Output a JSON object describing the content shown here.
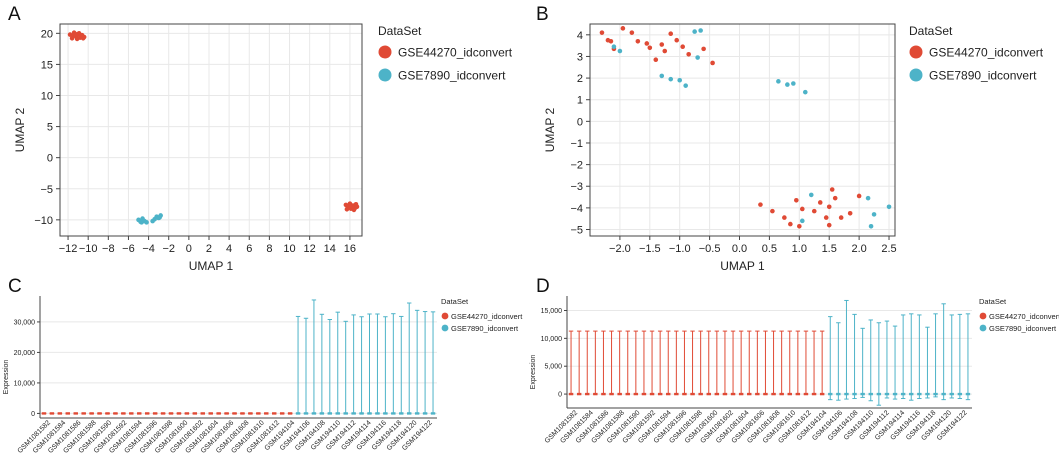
{
  "colors": {
    "gse44270": "#e04a35",
    "gse7890": "#4db3c8"
  },
  "panel_labels": [
    "A",
    "B",
    "C",
    "D"
  ],
  "chart_data": [
    {
      "id": "A",
      "type": "scatter",
      "xlabel": "UMAP 1",
      "ylabel": "UMAP 2",
      "xlim": [
        -12.8,
        17.2
      ],
      "ylim": [
        -12.6,
        21.5
      ],
      "xticks": [
        -12,
        -10,
        -8,
        -6,
        -4,
        -2,
        0,
        2,
        4,
        6,
        8,
        10,
        12,
        14,
        16
      ],
      "xtick_labels": [
        "−12",
        "−10",
        "−8",
        "−6",
        "−4",
        "−2",
        "0",
        "2",
        "4",
        "6",
        "8",
        "10",
        "12",
        "14",
        "16"
      ],
      "yticks": [
        -10,
        -5,
        0,
        5,
        10,
        15,
        20
      ],
      "ytick_labels": [
        "−10",
        "−5",
        "0",
        "5",
        "10",
        "15",
        "20"
      ],
      "legend_title": "DataSet",
      "series": [
        {
          "name": "GSE44270_idconvert",
          "color": "#e04a35",
          "points": [
            [
              -11.8,
              19.8
            ],
            [
              -11.6,
              19.2
            ],
            [
              -11.4,
              20.1
            ],
            [
              -11.2,
              19.5
            ],
            [
              -11.0,
              19.9
            ],
            [
              -10.8,
              19.3
            ],
            [
              -10.6,
              19.7
            ],
            [
              -10.4,
              19.4
            ],
            [
              -11.5,
              19.6
            ],
            [
              -11.1,
              19.1
            ],
            [
              -10.9,
              20.0
            ],
            [
              -10.7,
              19.6
            ],
            [
              -11.3,
              19.9
            ],
            [
              -10.5,
              19.2
            ],
            [
              15.6,
              -7.6
            ],
            [
              15.8,
              -8.0
            ],
            [
              16.0,
              -7.4
            ],
            [
              16.1,
              -8.2
            ],
            [
              16.3,
              -7.7
            ],
            [
              16.5,
              -8.1
            ],
            [
              16.6,
              -7.5
            ],
            [
              15.7,
              -8.3
            ],
            [
              16.2,
              -7.9
            ],
            [
              16.4,
              -8.4
            ],
            [
              15.9,
              -7.8
            ],
            [
              16.7,
              -7.9
            ]
          ]
        },
        {
          "name": "GSE7890_idconvert",
          "color": "#4db3c8",
          "points": [
            [
              -5.0,
              -10.0
            ],
            [
              -4.8,
              -10.3
            ],
            [
              -4.6,
              -9.8
            ],
            [
              -4.4,
              -10.2
            ],
            [
              -4.2,
              -10.4
            ],
            [
              -3.4,
              -9.9
            ],
            [
              -3.2,
              -9.5
            ],
            [
              -3.0,
              -9.7
            ],
            [
              -2.8,
              -9.3
            ],
            [
              -3.6,
              -10.2
            ],
            [
              -4.7,
              -10.4
            ],
            [
              -2.9,
              -9.6
            ]
          ]
        }
      ]
    },
    {
      "id": "B",
      "type": "scatter",
      "xlabel": "UMAP 1",
      "ylabel": "UMAP 2",
      "xlim": [
        -2.5,
        2.6
      ],
      "ylim": [
        -5.3,
        4.5
      ],
      "xticks": [
        -2.0,
        -1.5,
        -1.0,
        -0.5,
        0.0,
        0.5,
        1.0,
        1.5,
        2.0,
        2.5
      ],
      "xtick_labels": [
        "−2.0",
        "−1.5",
        "−1.0",
        "−0.5",
        "0.0",
        "0.5",
        "1.0",
        "1.5",
        "2.0",
        "2.5"
      ],
      "yticks": [
        -5,
        -4,
        -3,
        -2,
        -1,
        0,
        1,
        2,
        3,
        4
      ],
      "ytick_labels": [
        "−5",
        "−4",
        "−3",
        "−2",
        "−1",
        "0",
        "1",
        "2",
        "3",
        "4"
      ],
      "legend_title": "DataSet",
      "series": [
        {
          "name": "GSE44270_idconvert",
          "color": "#e04a35",
          "points": [
            [
              -2.3,
              4.1
            ],
            [
              -2.15,
              3.7
            ],
            [
              -2.1,
              3.35
            ],
            [
              -1.95,
              4.3
            ],
            [
              -1.8,
              4.1
            ],
            [
              -1.7,
              3.7
            ],
            [
              -1.55,
              3.6
            ],
            [
              -1.5,
              3.4
            ],
            [
              -1.4,
              2.85
            ],
            [
              -1.3,
              3.55
            ],
            [
              -1.25,
              3.25
            ],
            [
              -1.15,
              4.05
            ],
            [
              -1.05,
              3.75
            ],
            [
              -0.95,
              3.45
            ],
            [
              -0.85,
              3.1
            ],
            [
              -0.6,
              3.35
            ],
            [
              -0.45,
              2.7
            ],
            [
              -2.2,
              3.75
            ],
            [
              0.35,
              -3.85
            ],
            [
              0.55,
              -4.15
            ],
            [
              0.75,
              -4.45
            ],
            [
              0.85,
              -4.75
            ],
            [
              0.95,
              -3.65
            ],
            [
              1.0,
              -4.85
            ],
            [
              1.05,
              -4.05
            ],
            [
              1.25,
              -4.15
            ],
            [
              1.35,
              -3.75
            ],
            [
              1.45,
              -4.45
            ],
            [
              1.5,
              -3.95
            ],
            [
              1.55,
              -3.15
            ],
            [
              1.6,
              -3.55
            ],
            [
              1.7,
              -4.45
            ],
            [
              1.85,
              -4.25
            ],
            [
              2.0,
              -3.45
            ],
            [
              1.5,
              -4.8
            ]
          ]
        },
        {
          "name": "GSE7890_idconvert",
          "color": "#4db3c8",
          "points": [
            [
              -2.1,
              3.45
            ],
            [
              -2.0,
              3.25
            ],
            [
              -1.3,
              2.1
            ],
            [
              -1.15,
              1.95
            ],
            [
              -1.0,
              1.9
            ],
            [
              -0.9,
              1.65
            ],
            [
              -0.75,
              4.15
            ],
            [
              -0.65,
              4.2
            ],
            [
              -0.7,
              2.95
            ],
            [
              0.65,
              1.85
            ],
            [
              0.8,
              1.7
            ],
            [
              0.9,
              1.75
            ],
            [
              1.1,
              1.35
            ],
            [
              1.2,
              -3.4
            ],
            [
              1.05,
              -4.6
            ],
            [
              2.15,
              -3.55
            ],
            [
              2.25,
              -4.3
            ],
            [
              2.2,
              -4.85
            ],
            [
              2.5,
              -3.95
            ]
          ]
        }
      ]
    },
    {
      "id": "C",
      "type": "box",
      "ylabel": "Expression",
      "ylim": [
        -1500,
        38500
      ],
      "yticks": [
        0,
        10000,
        20000,
        30000
      ],
      "ytick_labels": [
        "0",
        "10,000",
        "20,000",
        "30,000"
      ],
      "legend_title": "DataSet",
      "categories": [
        "GSM1081582",
        "GSM1081584",
        "GSM1081586",
        "GSM1081588",
        "GSM1081590",
        "GSM1081592",
        "GSM1081594",
        "GSM1081596",
        "GSM1081598",
        "GSM1081600",
        "GSM1081602",
        "GSM1081604",
        "GSM1081606",
        "GSM1081608",
        "GSM1081610",
        "GSM1081612",
        "GSM194104",
        "GSM194106",
        "GSM194108",
        "GSM194110",
        "GSM194112",
        "GSM194114",
        "GSM194116",
        "GSM194118",
        "GSM194120",
        "GSM194122"
      ],
      "series": [
        {
          "name": "GSE44270_idconvert",
          "color": "#e04a35",
          "groups": 32,
          "max": [
            16,
            16,
            16,
            16,
            16,
            16,
            16,
            16,
            16,
            16,
            16,
            16,
            16,
            16,
            16,
            16,
            16,
            16,
            16,
            16,
            16,
            16,
            16,
            16,
            16,
            16,
            16,
            16,
            16,
            16,
            16,
            16
          ],
          "min": 0
        },
        {
          "name": "GSE7890_idconvert",
          "color": "#4db3c8",
          "groups": 18,
          "max": [
            31800,
            31200,
            37200,
            32500,
            30800,
            33200,
            30200,
            32300,
            31700,
            32600,
            32600,
            31700,
            32700,
            31800,
            36200,
            33800,
            33400,
            33300
          ],
          "min": 0
        }
      ]
    },
    {
      "id": "D",
      "type": "box",
      "ylabel": "Expression",
      "ylim": [
        -2500,
        17600
      ],
      "yticks": [
        0,
        5000,
        10000,
        15000
      ],
      "ytick_labels": [
        "0",
        "5,000",
        "10,000",
        "15,000"
      ],
      "legend_title": "DataSet",
      "categories": [
        "GSM1081582",
        "GSM1081584",
        "GSM1081586",
        "GSM1081588",
        "GSM1081590",
        "GSM1081592",
        "GSM1081594",
        "GSM1081596",
        "GSM1081598",
        "GSM1081600",
        "GSM1081602",
        "GSM1081604",
        "GSM1081606",
        "GSM1081608",
        "GSM1081610",
        "GSM1081612",
        "GSM194104",
        "GSM194106",
        "GSM194108",
        "GSM194110",
        "GSM194112",
        "GSM194114",
        "GSM194116",
        "GSM194118",
        "GSM194120",
        "GSM194122"
      ],
      "series": [
        {
          "name": "GSE44270_idconvert",
          "color": "#e04a35",
          "groups": 32,
          "max": [
            11300,
            11300,
            11300,
            11300,
            11300,
            11300,
            11300,
            11300,
            11300,
            11300,
            11300,
            11300,
            11300,
            11300,
            11300,
            11300,
            11300,
            11300,
            11300,
            11300,
            11300,
            11300,
            11300,
            11300,
            11300,
            11300,
            11300,
            11300,
            11300,
            11300,
            11300,
            11300
          ],
          "min": 0
        },
        {
          "name": "GSE7890_idconvert",
          "color": "#4db3c8",
          "groups": 18,
          "max": [
            13900,
            12800,
            16800,
            14300,
            11800,
            13300,
            12800,
            13100,
            12200,
            14200,
            14400,
            14200,
            12000,
            14400,
            16200,
            14200,
            14300,
            14400
          ],
          "min": [
            -1000,
            -1100,
            -900,
            -800,
            -600,
            -1200,
            -2000,
            -700,
            -900,
            -800,
            -1100,
            -800,
            -700,
            -500,
            -1000,
            -700,
            -800,
            -1000
          ]
        }
      ]
    }
  ]
}
